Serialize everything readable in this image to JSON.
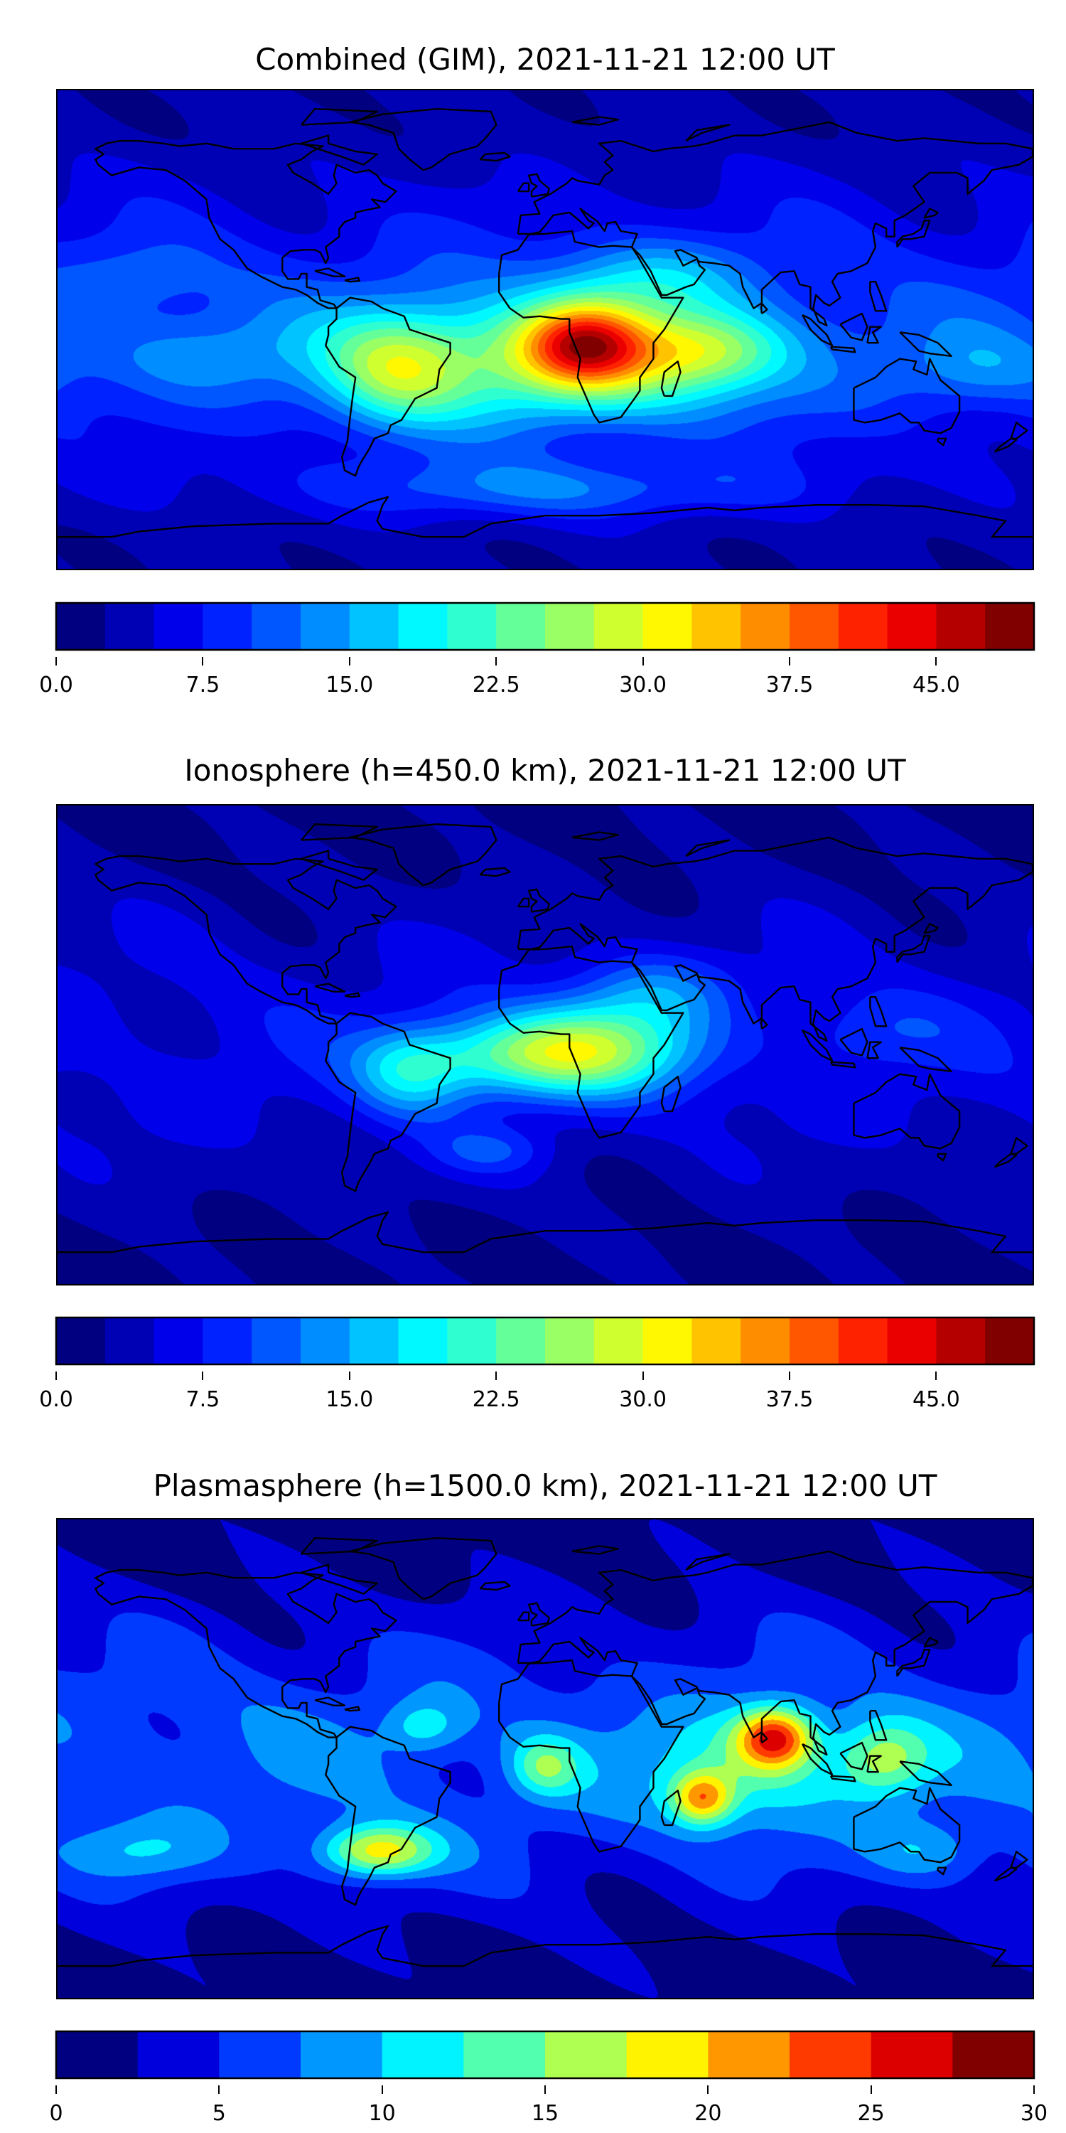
{
  "panels": [
    {
      "title": "Combined (GIM), 2021-11-21 12:00 UT",
      "colorbar": {
        "min": 0,
        "max": 50,
        "step": 2.5,
        "ticks": [
          "0.0",
          "7.5",
          "15.0",
          "22.5",
          "30.0",
          "37.5",
          "45.0"
        ],
        "tick_values": [
          0,
          7.5,
          15,
          22.5,
          30,
          37.5,
          45
        ]
      }
    },
    {
      "title": "Ionosphere  (h=450.0 km), 2021-11-21 12:00 UT",
      "colorbar": {
        "min": 0,
        "max": 50,
        "step": 2.5,
        "ticks": [
          "0.0",
          "7.5",
          "15.0",
          "22.5",
          "30.0",
          "37.5",
          "45.0"
        ],
        "tick_values": [
          0,
          7.5,
          15,
          22.5,
          30,
          37.5,
          45
        ]
      }
    },
    {
      "title": "Plasmasphere (h=1500.0 km), 2021-11-21 12:00 UT",
      "colorbar": {
        "min": 0,
        "max": 30,
        "step": 2.5,
        "ticks": [
          "0",
          "5",
          "10",
          "15",
          "20",
          "25",
          "30"
        ],
        "tick_values": [
          0,
          5,
          10,
          15,
          20,
          25,
          30
        ]
      }
    }
  ],
  "chart_data": [
    {
      "type": "heatmap",
      "title": "Combined (GIM), 2021-11-21 12:00 UT",
      "xlim": [
        -180,
        180
      ],
      "ylim": [
        -90,
        90
      ],
      "zlim": [
        0,
        50
      ],
      "levels_step": 2.5,
      "colormap": "jet",
      "base": {
        "equator": 9,
        "pole": 3
      },
      "field_components": [
        {
          "lon": 15,
          "lat": -5,
          "amp": 22,
          "slon": 16,
          "slat": 11
        },
        {
          "lon": 5,
          "lat": -12,
          "amp": 17,
          "slon": 55,
          "slat": 17
        },
        {
          "lon": -55,
          "lat": -15,
          "amp": 12,
          "slon": 18,
          "slat": 15
        },
        {
          "lon": 60,
          "lat": -8,
          "amp": 11,
          "slon": 20,
          "slat": 10
        },
        {
          "lon": 0,
          "lat": -60,
          "amp": 8,
          "slon": 60,
          "slat": 8
        },
        {
          "lon": -130,
          "lat": -10,
          "amp": 5,
          "slon": 25,
          "slat": 10
        },
        {
          "lon": -150,
          "lat": 20,
          "amp": 4,
          "slon": 20,
          "slat": 10
        },
        {
          "lon": 160,
          "lat": -15,
          "amp": 5,
          "slon": 20,
          "slat": 10
        },
        {
          "lon": 40,
          "lat": 20,
          "amp": 7,
          "slon": 25,
          "slat": 10
        }
      ]
    },
    {
      "type": "heatmap",
      "title": "Ionosphere  (h=450.0 km), 2021-11-21 12:00 UT",
      "xlim": [
        -180,
        180
      ],
      "ylim": [
        -90,
        90
      ],
      "zlim": [
        0,
        50
      ],
      "levels_step": 2.5,
      "colormap": "jet",
      "base": {
        "equator": 6,
        "pole": 2
      },
      "field_components": [
        {
          "lon": 15,
          "lat": -2,
          "amp": 20,
          "slon": 28,
          "slat": 12
        },
        {
          "lon": -50,
          "lat": -10,
          "amp": 11,
          "slon": 15,
          "slat": 12
        },
        {
          "lon": -20,
          "lat": -5,
          "amp": 8,
          "slon": 25,
          "slat": 10
        },
        {
          "lon": 40,
          "lat": 20,
          "amp": 7,
          "slon": 20,
          "slat": 10
        },
        {
          "lon": -20,
          "lat": -40,
          "amp": 5,
          "slon": 15,
          "slat": 6
        },
        {
          "lon": 120,
          "lat": 5,
          "amp": 4,
          "slon": 20,
          "slat": 10
        }
      ]
    },
    {
      "type": "heatmap",
      "title": "Plasmasphere (h=1500.0 km), 2021-11-21 12:00 UT",
      "xlim": [
        -180,
        180
      ],
      "ylim": [
        -90,
        90
      ],
      "zlim": [
        0,
        30
      ],
      "levels_step": 2.5,
      "colormap": "jet",
      "base": {
        "equator": 7,
        "pole": 1.5
      },
      "field_components": [
        {
          "lon": 85,
          "lat": 8,
          "amp": 17,
          "slon": 10,
          "slat": 8
        },
        {
          "lon": 58,
          "lat": -15,
          "amp": 13,
          "slon": 8,
          "slat": 7
        },
        {
          "lon": -62,
          "lat": -35,
          "amp": 14,
          "slon": 15,
          "slat": 7
        },
        {
          "lon": 125,
          "lat": 0,
          "amp": 9,
          "slon": 12,
          "slat": 10
        },
        {
          "lon": 0,
          "lat": -3,
          "amp": 8,
          "slon": 9,
          "slat": 8
        },
        {
          "lon": -45,
          "lat": 12,
          "amp": 6,
          "slon": 10,
          "slat": 7
        },
        {
          "lon": -150,
          "lat": -35,
          "amp": 5,
          "slon": 20,
          "slat": 8
        },
        {
          "lon": 140,
          "lat": -35,
          "amp": 5,
          "slon": 15,
          "slat": 8
        },
        {
          "lon": 75,
          "lat": -5,
          "amp": 6,
          "slon": 25,
          "slat": 15
        }
      ]
    }
  ]
}
